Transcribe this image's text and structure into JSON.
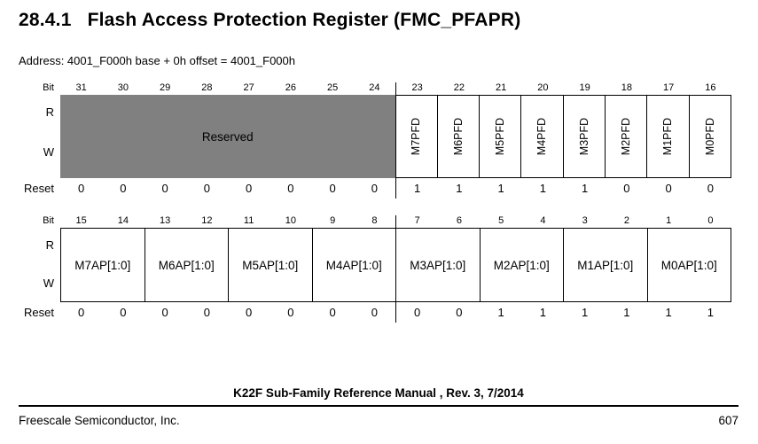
{
  "heading": {
    "section_number": "28.4.1",
    "title": "Flash Access Protection Register (FMC_PFAPR)"
  },
  "address_line": "Address: 4001_F000h base + 0h offset = 4001_F000h",
  "labels": {
    "bit": "Bit",
    "r": "R",
    "w": "W",
    "reset": "Reset"
  },
  "colors": {
    "reserved_fill": "#808080",
    "line": "#000000",
    "background": "#ffffff"
  },
  "register": {
    "name": "FMC_PFAPR",
    "high_word": {
      "bits": [
        "31",
        "30",
        "29",
        "28",
        "27",
        "26",
        "25",
        "24",
        "23",
        "22",
        "21",
        "20",
        "19",
        "18",
        "17",
        "16"
      ],
      "reserved_label": "Reserved",
      "reserved_bit_span": 8,
      "fields": [
        "M7PFD",
        "M6PFD",
        "M5PFD",
        "M4PFD",
        "M3PFD",
        "M2PFD",
        "M1PFD",
        "M0PFD"
      ],
      "reset": [
        "0",
        "0",
        "0",
        "0",
        "0",
        "0",
        "0",
        "0",
        "1",
        "1",
        "1",
        "1",
        "1",
        "0",
        "0",
        "0"
      ]
    },
    "low_word": {
      "bits": [
        "15",
        "14",
        "13",
        "12",
        "11",
        "10",
        "9",
        "8",
        "7",
        "6",
        "5",
        "4",
        "3",
        "2",
        "1",
        "0"
      ],
      "fields": [
        "M7AP[1:0]",
        "M6AP[1:0]",
        "M5AP[1:0]",
        "M4AP[1:0]",
        "M3AP[1:0]",
        "M2AP[1:0]",
        "M1AP[1:0]",
        "M0AP[1:0]"
      ],
      "reset": [
        "0",
        "0",
        "0",
        "0",
        "0",
        "0",
        "0",
        "0",
        "0",
        "0",
        "1",
        "1",
        "1",
        "1",
        "1",
        "1"
      ]
    }
  },
  "footer": {
    "center": "K22F Sub-Family Reference Manual , Rev. 3, 7/2014",
    "left": "Freescale Semiconductor, Inc.",
    "page_number": "607"
  }
}
